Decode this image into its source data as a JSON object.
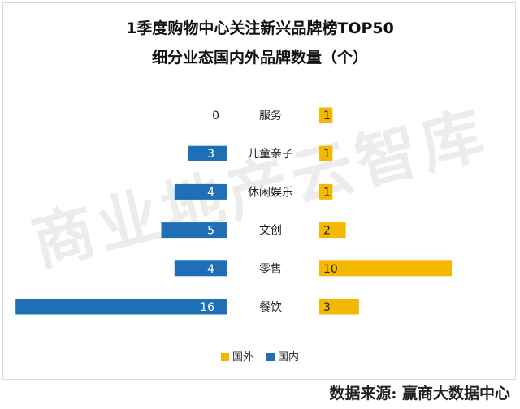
{
  "title_line1": "1季度购物中心关注新兴品牌榜TOP50",
  "title_line2": "细分业态国内外品牌数量（个）",
  "watermark": "商业地产云智库",
  "source": "数据来源: 赢商大数据中心",
  "colors": {
    "foreign": "#f5b800",
    "domestic": "#1f6fb6"
  },
  "chart_data": {
    "type": "bar",
    "orientation": "horizontal-butterfly",
    "categories": [
      "服务",
      "儿童亲子",
      "休闲娱乐",
      "文创",
      "零售",
      "餐饮"
    ],
    "series": [
      {
        "name": "国外",
        "values": [
          1,
          1,
          1,
          2,
          10,
          3
        ]
      },
      {
        "name": "国内",
        "values": [
          0,
          3,
          4,
          5,
          4,
          16
        ]
      }
    ],
    "legend": [
      "国外",
      "国内"
    ],
    "legend_position": "bottom"
  }
}
